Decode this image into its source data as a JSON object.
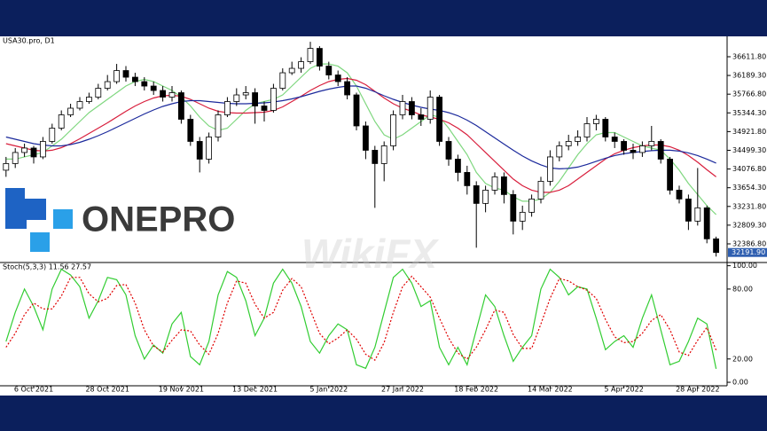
{
  "logo": "ONEPRO",
  "watermark": "WikiFX",
  "chart_data": [
    {
      "type": "candlestick",
      "title": "USA30.pro, D1",
      "up_color": "#ffffff",
      "down_color": "#000000",
      "categories": [
        null,
        null,
        null,
        "6 Oct 2021",
        null,
        null,
        null,
        null,
        null,
        null,
        null,
        "28 Oct 2021",
        null,
        null,
        null,
        null,
        null,
        null,
        null,
        "19 Nov 2021",
        null,
        null,
        null,
        null,
        null,
        null,
        null,
        "13 Dec 2021",
        null,
        null,
        null,
        null,
        null,
        null,
        null,
        "5 Jan 2022",
        null,
        null,
        null,
        null,
        null,
        null,
        null,
        "27 Jan 2022",
        null,
        null,
        null,
        null,
        null,
        null,
        null,
        "18 Feb 2022",
        null,
        null,
        null,
        null,
        null,
        null,
        null,
        "14 Mar 2022",
        null,
        null,
        null,
        null,
        null,
        null,
        null,
        "5 Apr 2022",
        null,
        null,
        null,
        null,
        null,
        null,
        null,
        "28 Apr 2022",
        null,
        null
      ],
      "open": [
        34050,
        34200,
        34450,
        34550,
        34350,
        34700,
        35000,
        35300,
        35450,
        35600,
        35700,
        35900,
        36050,
        36300,
        36150,
        36050,
        35950,
        35850,
        35700,
        35800,
        35200,
        34700,
        34300,
        34800,
        35300,
        35600,
        35750,
        35800,
        35500,
        35400,
        35900,
        36250,
        36350,
        36500,
        36800,
        36400,
        36200,
        36050,
        35750,
        35050,
        34500,
        34200,
        34600,
        35300,
        35600,
        35300,
        35200,
        35700,
        34700,
        34300,
        34000,
        33700,
        33300,
        33600,
        33900,
        33500,
        32900,
        33100,
        33400,
        33800,
        34350,
        34600,
        34700,
        34800,
        35100,
        35200,
        34800,
        34700,
        34500,
        34450,
        34600,
        34700,
        34300,
        33600,
        33400,
        32900,
        33200,
        32500
      ],
      "high": [
        34350,
        34550,
        34650,
        34600,
        34800,
        35100,
        35400,
        35550,
        35700,
        35800,
        36000,
        36200,
        36450,
        36400,
        36250,
        36150,
        36050,
        35950,
        35950,
        35850,
        35300,
        34800,
        34900,
        35400,
        35700,
        35900,
        35950,
        35900,
        35600,
        36000,
        36350,
        36500,
        36600,
        36950,
        36850,
        36500,
        36300,
        36150,
        35800,
        35150,
        34600,
        34700,
        35400,
        35750,
        35700,
        35450,
        35850,
        35750,
        34800,
        34400,
        34150,
        33800,
        33700,
        34000,
        34000,
        33600,
        33250,
        33500,
        33900,
        34500,
        34700,
        34850,
        34950,
        35250,
        35300,
        35250,
        34900,
        34750,
        34650,
        34700,
        35050,
        34750,
        34350,
        33700,
        33500,
        34100,
        33250,
        32550
      ],
      "low": [
        33900,
        34100,
        34350,
        34200,
        34300,
        34650,
        34950,
        35250,
        35400,
        35550,
        35650,
        35850,
        36000,
        36050,
        35950,
        35850,
        35750,
        35600,
        35600,
        35100,
        34600,
        34000,
        34200,
        34700,
        35250,
        35500,
        35650,
        35100,
        35150,
        35350,
        35850,
        36200,
        36250,
        36450,
        36300,
        36100,
        35950,
        35650,
        34950,
        34300,
        33200,
        33800,
        34500,
        35200,
        35200,
        35050,
        35100,
        34600,
        34150,
        33800,
        33500,
        32300,
        33100,
        33500,
        33300,
        32600,
        32700,
        33000,
        33300,
        33700,
        34250,
        34500,
        34600,
        34700,
        34950,
        34700,
        34550,
        34400,
        34300,
        34350,
        34500,
        34200,
        33500,
        33300,
        32700,
        32800,
        32400,
        32100
      ],
      "close": [
        34200,
        34450,
        34550,
        34350,
        34700,
        35000,
        35300,
        35450,
        35600,
        35700,
        35900,
        36050,
        36300,
        36150,
        36050,
        35950,
        35850,
        35700,
        35800,
        35200,
        34700,
        34300,
        34800,
        35300,
        35600,
        35750,
        35800,
        35500,
        35400,
        35900,
        36250,
        36350,
        36500,
        36800,
        36400,
        36200,
        36050,
        35750,
        35050,
        34500,
        34200,
        34600,
        35300,
        35600,
        35300,
        35200,
        35700,
        34700,
        34300,
        34000,
        33700,
        33300,
        33600,
        33900,
        33500,
        32900,
        33100,
        33400,
        33800,
        34350,
        34600,
        34700,
        34800,
        35100,
        35200,
        34800,
        34700,
        34500,
        34450,
        34600,
        34700,
        34300,
        33600,
        33400,
        32900,
        33200,
        32500,
        32191.9
      ],
      "series": [
        {
          "color": "#7fd77f",
          "values": [
            34300,
            34300,
            34350,
            34400,
            34450,
            34600,
            34750,
            34950,
            35150,
            35350,
            35500,
            35650,
            35800,
            35950,
            36050,
            36100,
            36050,
            35950,
            35850,
            35700,
            35500,
            35250,
            35050,
            34950,
            35000,
            35200,
            35400,
            35550,
            35600,
            35650,
            35750,
            35950,
            36150,
            36350,
            36450,
            36450,
            36400,
            36250,
            35950,
            35550,
            35150,
            34850,
            34750,
            34850,
            35000,
            35150,
            35300,
            35250,
            35000,
            34700,
            34400,
            34000,
            33750,
            33650,
            33600,
            33450,
            33350,
            33350,
            33400,
            33550,
            33800,
            34100,
            34400,
            34650,
            34850,
            34900,
            34900,
            34800,
            34700,
            34600,
            34550,
            34500,
            34300,
            34050,
            33750,
            33500,
            33250,
            33050
          ]
        },
        {
          "color": "#d81e3c",
          "values": [
            34650,
            34600,
            34550,
            34500,
            34480,
            34500,
            34560,
            34650,
            34760,
            34880,
            35000,
            35120,
            35250,
            35380,
            35500,
            35600,
            35680,
            35730,
            35740,
            35720,
            35650,
            35550,
            35450,
            35380,
            35350,
            35340,
            35340,
            35350,
            35360,
            35400,
            35480,
            35600,
            35720,
            35850,
            35960,
            36050,
            36100,
            36120,
            36080,
            35980,
            35830,
            35680,
            35550,
            35450,
            35380,
            35300,
            35250,
            35200,
            35120,
            35000,
            34850,
            34650,
            34450,
            34250,
            34050,
            33850,
            33700,
            33600,
            33550,
            33550,
            33600,
            33700,
            33850,
            34000,
            34150,
            34300,
            34420,
            34500,
            34560,
            34600,
            34620,
            34620,
            34580,
            34500,
            34380,
            34230,
            34060,
            33900
          ]
        },
        {
          "color": "#1c2a9c",
          "values": [
            34800,
            34750,
            34700,
            34650,
            34620,
            34600,
            34600,
            34630,
            34680,
            34750,
            34830,
            34920,
            35020,
            35120,
            35220,
            35320,
            35410,
            35490,
            35550,
            35600,
            35620,
            35620,
            35600,
            35580,
            35560,
            35550,
            35550,
            35560,
            35570,
            35590,
            35620,
            35660,
            35710,
            35770,
            35830,
            35880,
            35920,
            35950,
            35950,
            35900,
            35820,
            35730,
            35650,
            35580,
            35520,
            35470,
            35430,
            35400,
            35350,
            35280,
            35180,
            35060,
            34920,
            34780,
            34640,
            34500,
            34370,
            34260,
            34170,
            34100,
            34080,
            34090,
            34120,
            34180,
            34250,
            34320,
            34380,
            34420,
            34450,
            34470,
            34490,
            34500,
            34500,
            34480,
            34440,
            34380,
            34300,
            34210
          ]
        }
      ],
      "ylim": [
        31986,
        37052
      ],
      "yticks": [
        {
          "value": 36611.8,
          "label": "36611.80"
        },
        {
          "value": 36189.3,
          "label": "36189.30"
        },
        {
          "value": 35766.8,
          "label": "35766.80"
        },
        {
          "value": 35344.3,
          "label": "35344.30"
        },
        {
          "value": 34921.8,
          "label": "34921.80"
        },
        {
          "value": 34499.3,
          "label": "34499.30"
        },
        {
          "value": 34076.8,
          "label": "34076.80"
        },
        {
          "value": 33654.3,
          "label": "33654.30"
        },
        {
          "value": 33231.8,
          "label": "33231.80"
        },
        {
          "value": 32809.3,
          "label": "32809.30"
        },
        {
          "value": 32386.8,
          "label": "32386.80"
        }
      ],
      "last_price": {
        "value": 32191.9,
        "label": "32191.90"
      }
    },
    {
      "type": "line",
      "title": "Stoch(5,3,3) 11.56 27.57",
      "series": [
        {
          "color": "#32cd32",
          "line_style": "solid",
          "values": [
            35,
            60,
            80,
            65,
            45,
            80,
            97,
            92,
            82,
            55,
            70,
            90,
            88,
            75,
            40,
            20,
            32,
            25,
            50,
            60,
            22,
            15,
            35,
            75,
            95,
            90,
            70,
            40,
            55,
            85,
            97,
            85,
            65,
            35,
            25,
            40,
            50,
            45,
            15,
            12,
            30,
            60,
            90,
            97,
            85,
            65,
            70,
            30,
            15,
            30,
            15,
            45,
            75,
            65,
            40,
            18,
            30,
            40,
            80,
            97,
            90,
            75,
            82,
            80,
            55,
            28,
            35,
            40,
            30,
            55,
            75,
            45,
            15,
            18,
            35,
            55,
            50,
            11.56
          ]
        },
        {
          "color": "#e00000",
          "line_style": "dotted",
          "values": [
            30,
            42,
            58,
            68,
            63,
            63,
            74,
            90,
            90,
            76,
            69,
            72,
            83,
            84,
            68,
            45,
            31,
            26,
            36,
            45,
            44,
            32,
            24,
            42,
            68,
            87,
            85,
            67,
            55,
            60,
            79,
            89,
            82,
            62,
            42,
            33,
            38,
            45,
            37,
            24,
            19,
            34,
            60,
            82,
            91,
            82,
            73,
            55,
            38,
            25,
            20,
            30,
            45,
            62,
            60,
            41,
            29,
            29,
            50,
            72,
            89,
            87,
            82,
            79,
            72,
            54,
            39,
            34,
            35,
            42,
            53,
            58,
            45,
            26,
            23,
            36,
            47,
            27.57
          ]
        }
      ],
      "ylim": [
        -3,
        102
      ],
      "yticks": [
        {
          "value": 100,
          "label": "100.00"
        },
        {
          "value": 80,
          "label": "80.00"
        },
        {
          "value": 20,
          "label": "20.00"
        },
        {
          "value": 0,
          "label": "0.00"
        }
      ]
    }
  ]
}
